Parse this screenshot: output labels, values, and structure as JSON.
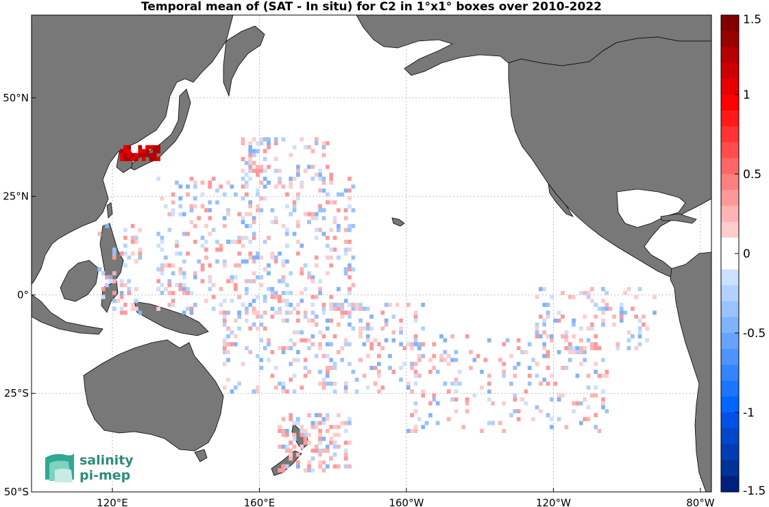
{
  "title": "Temporal mean of (SAT - In situ) for C2 in 1°x1° boxes over 2010-2022",
  "map": {
    "projection": "equirectangular",
    "lon_range": [
      98,
      283
    ],
    "lat_range": [
      -50,
      71
    ],
    "grid_lines": "dotted",
    "land_color": "#787878",
    "ocean_color": "#ffffff"
  },
  "axes": {
    "x_ticks": [
      {
        "lon": 120,
        "label": "120°E"
      },
      {
        "lon": 160,
        "label": "160°E"
      },
      {
        "lon": 200,
        "label": "160°W"
      },
      {
        "lon": 240,
        "label": "120°W"
      },
      {
        "lon": 280,
        "label": "80°W"
      }
    ],
    "y_ticks": [
      {
        "lat": 50,
        "label": "50°N"
      },
      {
        "lat": 25,
        "label": "25°N"
      },
      {
        "lat": 0,
        "label": "0°"
      },
      {
        "lat": -25,
        "label": "25°S"
      },
      {
        "lat": -50,
        "label": "50°S"
      }
    ]
  },
  "colorbar": {
    "range": [
      -1.5,
      1.5
    ],
    "ticks": [
      {
        "value": 1.5,
        "label": "1.5"
      },
      {
        "value": 1,
        "label": "1"
      },
      {
        "value": 0.5,
        "label": "0.5"
      },
      {
        "value": 0,
        "label": "0"
      },
      {
        "value": -0.5,
        "label": "-0.5"
      },
      {
        "value": -1,
        "label": "-1"
      },
      {
        "value": -1.5,
        "label": "-1.5"
      }
    ],
    "colors_top_to_bottom": [
      "#800000",
      "#990000",
      "#b30000",
      "#cc0000",
      "#e60000",
      "#ff0000",
      "#ff1a1a",
      "#ff3333",
      "#ff4d4d",
      "#ff6666",
      "#ff8080",
      "#ff9999",
      "#ffb3b3",
      "#ffcccc",
      "#ffffff",
      "#ffffff",
      "#cce0ff",
      "#b3d1ff",
      "#99c2ff",
      "#80b3ff",
      "#66a3ff",
      "#4d94ff",
      "#3385ff",
      "#1a75ff",
      "#0066ff",
      "#0052e6",
      "#0047cc",
      "#003db3",
      "#003399",
      "#002080"
    ]
  },
  "logo": {
    "line1": "salinity",
    "line2": "pi-mep"
  }
}
